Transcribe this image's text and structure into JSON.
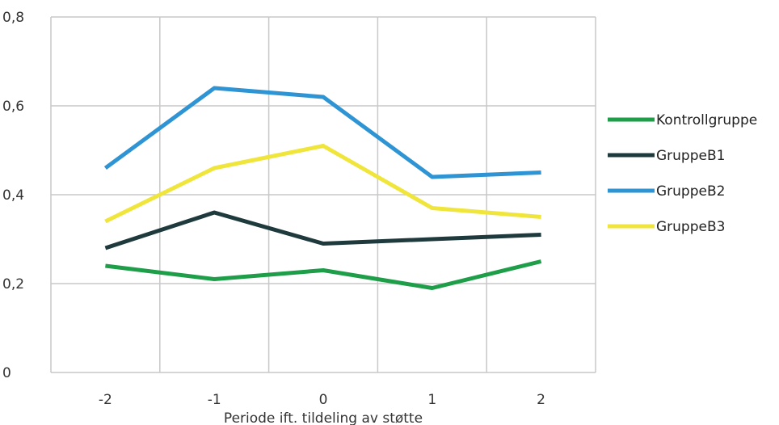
{
  "chart_data": {
    "type": "line",
    "title": "",
    "xlabel": "Periode ift. tildeling av støtte",
    "ylabel": "",
    "categories": [
      "-2",
      "-1",
      "0",
      "1",
      "2"
    ],
    "ylim": [
      0,
      0.8
    ],
    "yticks": [
      "0",
      "0,2",
      "0,4",
      "0,6",
      "0,8"
    ],
    "grid": true,
    "legend_position": "right",
    "series": [
      {
        "name": "Kontrollgruppe",
        "color": "#1e9e48",
        "values": [
          0.24,
          0.21,
          0.23,
          0.19,
          0.25
        ]
      },
      {
        "name": "GruppeB1",
        "color": "#1f3a3d",
        "values": [
          0.28,
          0.36,
          0.29,
          0.3,
          0.31
        ]
      },
      {
        "name": "GruppeB2",
        "color": "#2f94d3",
        "values": [
          0.46,
          0.64,
          0.62,
          0.44,
          0.45
        ]
      },
      {
        "name": "GruppeB3",
        "color": "#f0e53a",
        "values": [
          0.34,
          0.46,
          0.51,
          0.37,
          0.35
        ]
      }
    ]
  }
}
